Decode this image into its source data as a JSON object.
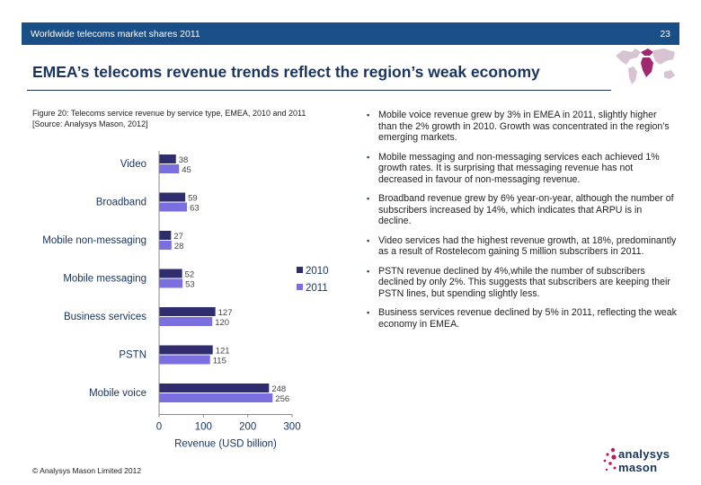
{
  "header": {
    "title": "Worldwide telecoms market shares 2011",
    "page_number": "23"
  },
  "slide_title": "EMEA’s telecoms revenue trends reflect the region’s weak economy",
  "figure_caption": {
    "line1": "Figure 20: Telecoms service revenue by service type, EMEA, 2010 and 2011",
    "line2": "[Source: Analysys Mason, 2012]"
  },
  "bullets": [
    "Mobile voice revenue grew by 3% in EMEA in 2011, slightly higher than the 2% growth in 2010. Growth was concentrated in the region’s emerging markets.",
    "Mobile messaging and non-messaging services each achieved 1% growth rates. It is surprising that messaging revenue has not decreased in favour of non-messaging revenue.",
    "Broadband revenue grew by 6% year-on-year, although the number of subscribers increased by 14%, which indicates that ARPU is in decline.",
    "Video services had the highest revenue growth, at 18%, predominantly as a result of Rostelecom gaining 5 million subscribers in 2011.",
    "PSTN revenue declined by 4%,while the number of subscribers declined by only 2%. This suggests that subscribers are keeping their PSTN lines, but spending slightly less.",
    "Business services revenue declined by 5% in 2011, reflecting the weak economy in EMEA."
  ],
  "footer": {
    "copyright": "© Analysys Mason Limited 2012"
  },
  "logo": {
    "line1": "analysys",
    "line2": "mason"
  },
  "colors": {
    "header_bg": "#1a4e86",
    "series_2010": "#2f2d6e",
    "series_2011": "#7b6fe0",
    "logo_accent": "#c2185b",
    "map_fill": "#a0286e"
  },
  "chart_data": {
    "type": "bar",
    "orientation": "horizontal",
    "categories": [
      "Video",
      "Broadband",
      "Mobile non-messaging",
      "Mobile messaging",
      "Business services",
      "PSTN",
      "Mobile voice"
    ],
    "series": [
      {
        "name": "2010",
        "values": [
          38,
          59,
          27,
          52,
          127,
          121,
          248
        ]
      },
      {
        "name": "2011",
        "values": [
          45,
          63,
          28,
          53,
          120,
          115,
          256
        ]
      }
    ],
    "xlabel": "Revenue (USD billion)",
    "ylabel": "",
    "xlim": [
      0,
      300
    ],
    "xticks": [
      "0",
      "100",
      "200",
      "300"
    ],
    "grid": false,
    "legend_position": "right"
  }
}
